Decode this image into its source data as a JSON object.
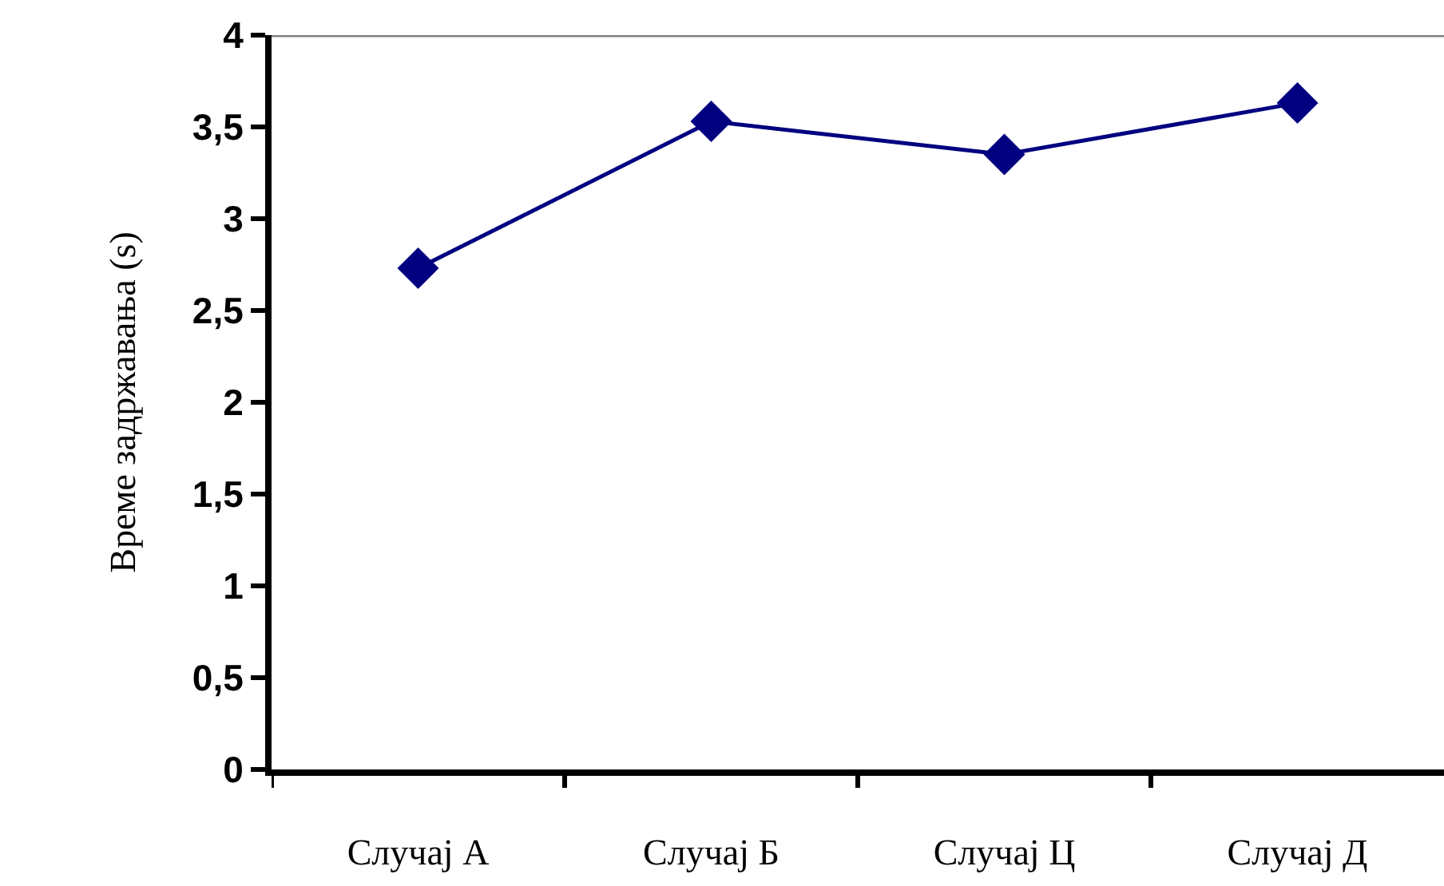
{
  "chart_data": {
    "type": "line",
    "ylabel": "Време задржавања (s)",
    "categories": [
      "Случај А",
      "Случај Б",
      "Случај Ц",
      "Случај Д"
    ],
    "series": [
      {
        "color": "#000080",
        "values": [
          2.73,
          3.53,
          3.35,
          3.63
        ]
      }
    ],
    "ylim": [
      0,
      4
    ],
    "yticks": [
      0,
      {
        "value": 0.5,
        "label": "0,5"
      },
      1,
      {
        "value": 1.5,
        "label": "1,5"
      },
      2,
      {
        "value": 2.5,
        "label": "2,5"
      },
      3,
      {
        "value": 3.5,
        "label": "3,5"
      },
      4
    ],
    "ref_lines": [
      {
        "axis": "y",
        "value": 4,
        "color": "#808080"
      }
    ],
    "marker": "diamond",
    "line_style": "solid",
    "grid": false
  }
}
